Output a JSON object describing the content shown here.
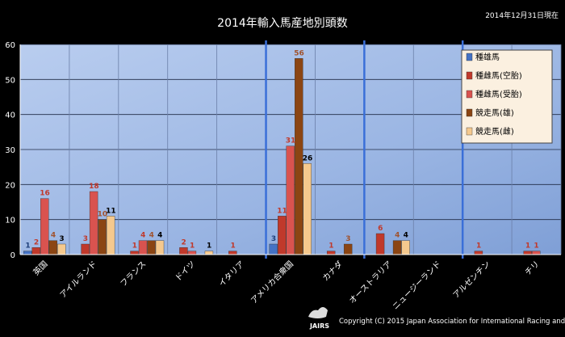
{
  "header": {
    "title": "2014年輸入馬産地別頭数",
    "date_note": "2014年12月31日現在"
  },
  "footer": {
    "copyright": "Copyright (C) 2015 Japan Association for International Racing and Stud Book.",
    "logo_text": "JAIRS"
  },
  "chart_data": {
    "type": "bar",
    "title": "2014年輸入馬産地別頭数",
    "xlabel": "",
    "ylabel": "",
    "ylim": [
      0,
      60
    ],
    "yticks": [
      0,
      10,
      20,
      30,
      40,
      50,
      60
    ],
    "grid": true,
    "legend_position": "top-right",
    "categories": [
      "英国",
      "アイルランド",
      "フランス",
      "ドイツ",
      "イタリア",
      "アメリカ合衆国",
      "カナダ",
      "オーストラリア",
      "ニュージーランド",
      "アルゼンチン",
      "チリ"
    ],
    "series": [
      {
        "name": "種雄馬",
        "color": "#4472c4",
        "label_color": "#1f3f7a",
        "values": [
          1,
          0,
          0,
          0,
          0,
          3,
          0,
          0,
          0,
          0,
          0
        ]
      },
      {
        "name": "種雌馬(空胎)",
        "color": "#c0392b",
        "label_color": "#c0392b",
        "values": [
          2,
          3,
          1,
          2,
          1,
          11,
          1,
          6,
          0,
          1,
          1
        ]
      },
      {
        "name": "種雌馬(受胎)",
        "color": "#d9534f",
        "label_color": "#c0392b",
        "values": [
          16,
          18,
          4,
          1,
          0,
          31,
          0,
          0,
          0,
          0,
          1
        ]
      },
      {
        "name": "競走馬(雄)",
        "color": "#8b4513",
        "label_color": "#a0522d",
        "values": [
          4,
          10,
          4,
          0,
          0,
          56,
          3,
          4,
          0,
          0,
          0
        ]
      },
      {
        "name": "競走馬(雌)",
        "color": "#f5c98e",
        "label_color": "#000000",
        "values": [
          3,
          11,
          4,
          1,
          0,
          26,
          0,
          4,
          0,
          0,
          0
        ]
      }
    ],
    "separators_after": [
      "イタリア",
      "カナダ",
      "ニュージーランド"
    ]
  }
}
